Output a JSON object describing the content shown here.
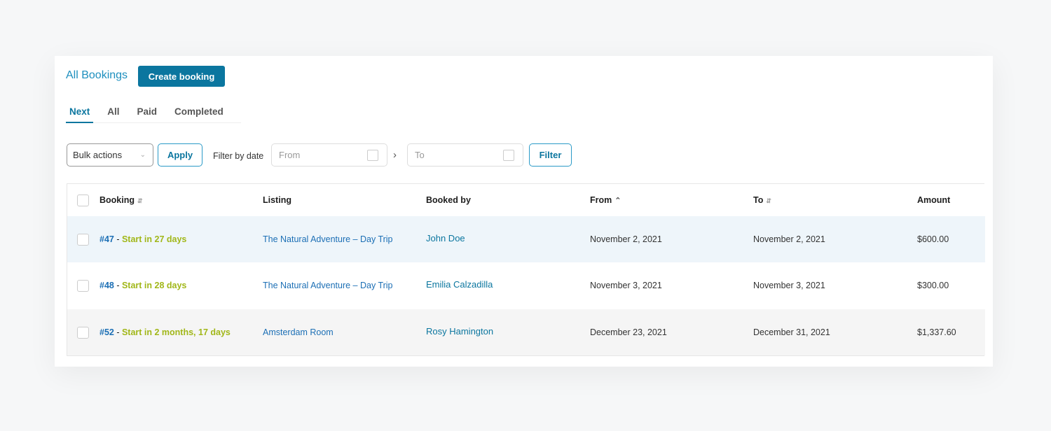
{
  "header": {
    "title": "All Bookings",
    "create_label": "Create booking"
  },
  "tabs": [
    {
      "label": "Next",
      "active": true
    },
    {
      "label": "All"
    },
    {
      "label": "Paid"
    },
    {
      "label": "Completed"
    }
  ],
  "filters": {
    "bulk_actions": "Bulk actions",
    "apply": "Apply",
    "filter_by_date": "Filter by date",
    "from_placeholder": "From",
    "to_placeholder": "To",
    "filter": "Filter"
  },
  "columns": [
    "Booking",
    "Listing",
    "Booked by",
    "From",
    "To",
    "Amount"
  ],
  "rows": [
    {
      "id": "#47",
      "status": "Start in 27 days",
      "listing": "The Natural Adventure – Day Trip",
      "booked_by": "John Doe",
      "from": "November 2, 2021",
      "to": "November 2, 2021",
      "amount": "$600.00"
    },
    {
      "id": "#48",
      "status": "Start in 28 days",
      "listing": "The Natural Adventure – Day Trip",
      "booked_by": "Emilia Calzadilla",
      "from": "November 3, 2021",
      "to": "November 3, 2021",
      "amount": "$300.00"
    },
    {
      "id": "#52",
      "status": "Start in 2 months, 17 days",
      "listing": "Amsterdam Room",
      "booked_by": "Rosy Hamington",
      "from": "December 23, 2021",
      "to": "December 31, 2021",
      "amount": "$1,337.60"
    }
  ],
  "colors": {
    "accent": "#0b769f",
    "status": "#a1b719",
    "link": "#1c6fb5"
  }
}
